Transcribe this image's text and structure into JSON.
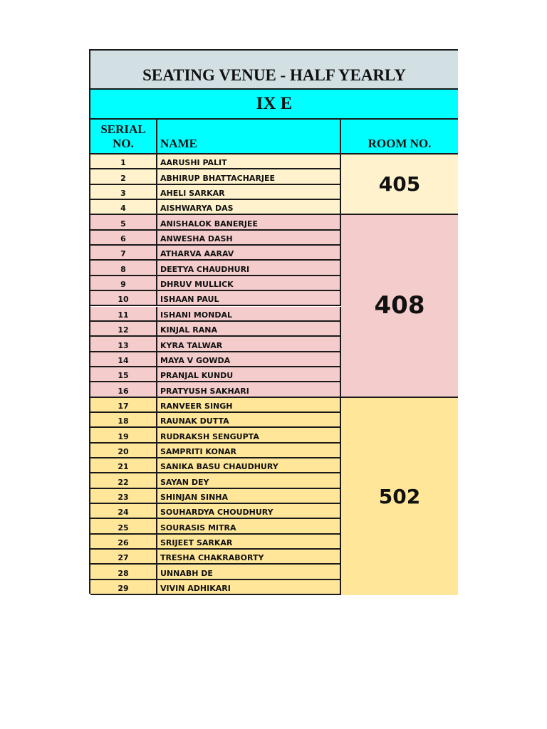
{
  "title": "SEATING VENUE -  HALF YEARLY",
  "class_name": "IX E",
  "headers": {
    "serial": "SERIAL NO.",
    "name": "NAME",
    "room": "ROOM NO."
  },
  "groups": [
    {
      "room": "405",
      "color": "#fff2cc",
      "start": 1,
      "end": 4
    },
    {
      "room": "408",
      "color": "#f4cccc",
      "start": 5,
      "end": 16
    },
    {
      "room": "502",
      "color": "#ffe699",
      "start": 17,
      "end": 29
    }
  ],
  "students": [
    {
      "serial": "1",
      "name": "AARUSHI PALIT"
    },
    {
      "serial": "2",
      "name": "ABHIRUP BHATTACHARJEE"
    },
    {
      "serial": "3",
      "name": "AHELI SARKAR"
    },
    {
      "serial": "4",
      "name": "AISHWARYA DAS"
    },
    {
      "serial": "5",
      "name": "ANISHALOK BANERJEE"
    },
    {
      "serial": "6",
      "name": "ANWESHA DASH"
    },
    {
      "serial": "7",
      "name": "ATHARVA AARAV"
    },
    {
      "serial": "8",
      "name": "DEETYA CHAUDHURI"
    },
    {
      "serial": "9",
      "name": "DHRUV MULLICK"
    },
    {
      "serial": "10",
      "name": "ISHAAN PAUL"
    },
    {
      "serial": "11",
      "name": "ISHANI MONDAL"
    },
    {
      "serial": "12",
      "name": "KINJAL RANA"
    },
    {
      "serial": "13",
      "name": "KYRA TALWAR"
    },
    {
      "serial": "14",
      "name": "MAYA V GOWDA"
    },
    {
      "serial": "15",
      "name": "PRANJAL KUNDU"
    },
    {
      "serial": "16",
      "name": "PRATYUSH SAKHARI"
    },
    {
      "serial": "17",
      "name": "RANVEER SINGH"
    },
    {
      "serial": "18",
      "name": "RAUNAK DUTTA"
    },
    {
      "serial": "19",
      "name": "RUDRAKSH SENGUPTA"
    },
    {
      "serial": "20",
      "name": "SAMPRITI KONAR"
    },
    {
      "serial": "21",
      "name": "SANIKA BASU CHAUDHURY"
    },
    {
      "serial": "22",
      "name": "SAYAN DEY"
    },
    {
      "serial": "23",
      "name": "SHINJAN SINHA"
    },
    {
      "serial": "24",
      "name": "SOUHARDYA CHOUDHURY"
    },
    {
      "serial": "25",
      "name": "SOURASIS MITRA"
    },
    {
      "serial": "26",
      "name": "SRIJEET SARKAR"
    },
    {
      "serial": "27",
      "name": "TRESHA CHAKRABORTY"
    },
    {
      "serial": "28",
      "name": "UNNABH DE"
    },
    {
      "serial": "29",
      "name": "VIVIN ADHIKARI"
    }
  ]
}
